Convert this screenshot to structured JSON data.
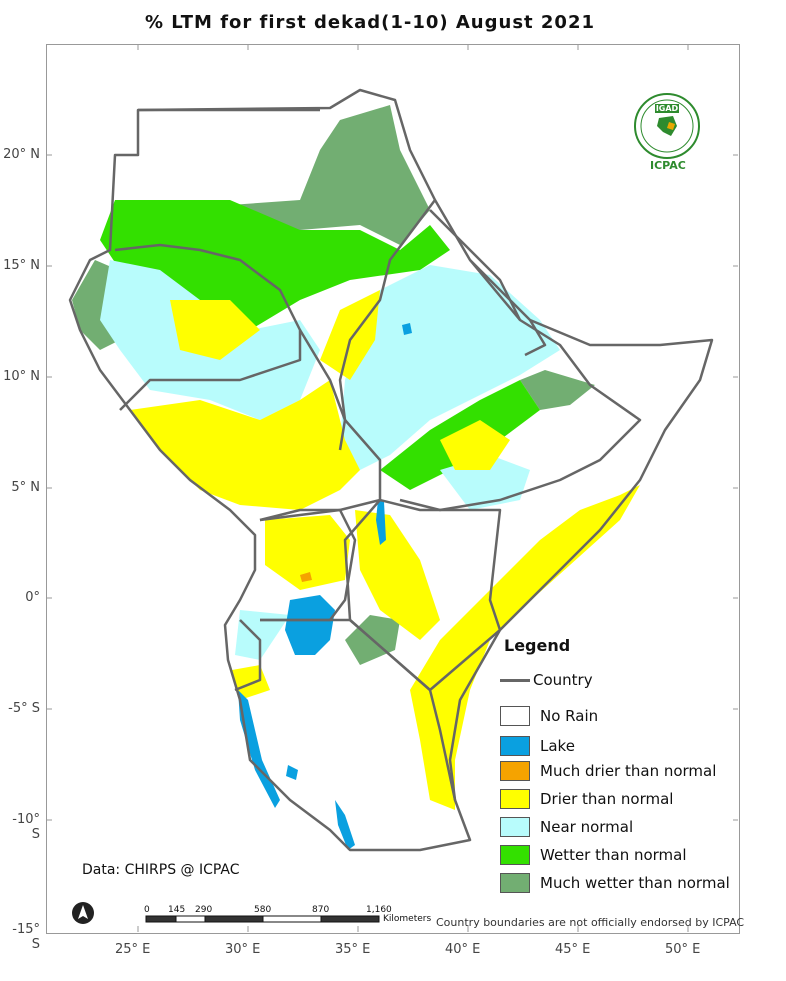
{
  "title": "% LTM for first dekad(1-10)  August 2021",
  "axes": {
    "lat_labels": [
      "20° N",
      "15° N",
      "10° N",
      "5° N",
      "0°",
      "-5° S",
      "-10° S",
      "-15° S"
    ],
    "lon_labels": [
      "25° E",
      "30° E",
      "35° E",
      "40° E",
      "45° E",
      "50° E"
    ]
  },
  "legend": {
    "title": "Legend",
    "country_label": "Country",
    "items": [
      {
        "label": "No Rain",
        "color": "#ffffff"
      },
      {
        "label": "Lake",
        "color": "#0aa0e0"
      },
      {
        "label": "Much drier than normal",
        "color": "#f5a300"
      },
      {
        "label": "Drier than normal",
        "color": "#ffff00"
      },
      {
        "label": "Near normal",
        "color": "#b8fcfc"
      },
      {
        "label": "Wetter than normal",
        "color": "#33e000"
      },
      {
        "label": "Much wetter than normal",
        "color": "#72ae72"
      }
    ]
  },
  "data_source": "Data: CHIRPS @ ICPAC",
  "disclaimer": "Country boundaries are not officially endorsed by ICPAC",
  "scale_bar": {
    "ticks": [
      "0",
      "145",
      "290",
      "580",
      "870",
      "1,160"
    ],
    "unit": "Kilometers"
  },
  "logo": {
    "top_text": "IGAD",
    "bottom_text": "ICPAC",
    "color": "#2e8b2e"
  },
  "north_arrow_icon": "north-arrow-icon"
}
